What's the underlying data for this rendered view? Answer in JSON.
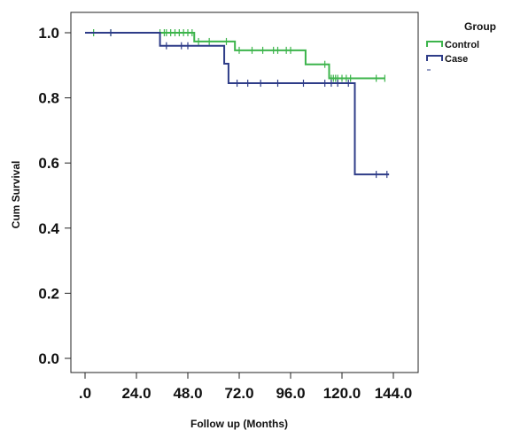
{
  "chart_data": {
    "type": "line",
    "step": true,
    "xlabel": "Follow up (Months)",
    "ylabel": "Cum Survival",
    "xlim": [
      0,
      144
    ],
    "ylim": [
      0,
      1
    ],
    "x_ticks": [
      ".0",
      "24.0",
      "48.0",
      "72.0",
      "96.0",
      "120.0",
      "144.0"
    ],
    "x_tick_values": [
      0,
      24,
      48,
      72,
      96,
      120,
      144
    ],
    "y_ticks": [
      "0.0",
      "0.2",
      "0.4",
      "0.6",
      "0.8",
      "1.0"
    ],
    "y_tick_values": [
      0,
      0.2,
      0.4,
      0.6,
      0.8,
      1.0
    ],
    "grid": false,
    "legend": {
      "title": "Group",
      "placement": "top-right"
    },
    "series": [
      {
        "name": "Control",
        "color": "#3cb44b",
        "steps": [
          [
            0,
            1.0
          ],
          [
            51,
            0.973
          ],
          [
            70,
            0.946
          ],
          [
            103,
            0.903
          ],
          [
            114,
            0.86
          ],
          [
            140,
            0.86
          ]
        ],
        "censored": [
          [
            4,
            1.0
          ],
          [
            12,
            1.0
          ],
          [
            35,
            1.0
          ],
          [
            37,
            1.0
          ],
          [
            38,
            1.0
          ],
          [
            40,
            1.0
          ],
          [
            42,
            1.0
          ],
          [
            44,
            1.0
          ],
          [
            46,
            1.0
          ],
          [
            48,
            1.0
          ],
          [
            50,
            1.0
          ],
          [
            53,
            0.973
          ],
          [
            58,
            0.973
          ],
          [
            66,
            0.973
          ],
          [
            72,
            0.946
          ],
          [
            78,
            0.946
          ],
          [
            83,
            0.946
          ],
          [
            88,
            0.946
          ],
          [
            90,
            0.946
          ],
          [
            94,
            0.946
          ],
          [
            96,
            0.946
          ],
          [
            112,
            0.903
          ],
          [
            115,
            0.86
          ],
          [
            116,
            0.86
          ],
          [
            117,
            0.86
          ],
          [
            118,
            0.86
          ],
          [
            120,
            0.86
          ],
          [
            122,
            0.86
          ],
          [
            124,
            0.86
          ],
          [
            136,
            0.86
          ],
          [
            140,
            0.86
          ]
        ]
      },
      {
        "name": "Case",
        "color": "#2e3c88",
        "steps": [
          [
            0,
            1.0
          ],
          [
            35,
            0.96
          ],
          [
            65,
            0.905
          ],
          [
            67,
            0.845
          ],
          [
            126,
            0.565
          ],
          [
            142,
            0.565
          ]
        ],
        "censored": [
          [
            12,
            1.0
          ],
          [
            38,
            0.96
          ],
          [
            45,
            0.96
          ],
          [
            48,
            0.96
          ],
          [
            71,
            0.845
          ],
          [
            76,
            0.845
          ],
          [
            82,
            0.845
          ],
          [
            90,
            0.845
          ],
          [
            102,
            0.845
          ],
          [
            112,
            0.845
          ],
          [
            115,
            0.845
          ],
          [
            118,
            0.845
          ],
          [
            123,
            0.845
          ],
          [
            136,
            0.565
          ],
          [
            141,
            0.565
          ]
        ]
      }
    ]
  }
}
